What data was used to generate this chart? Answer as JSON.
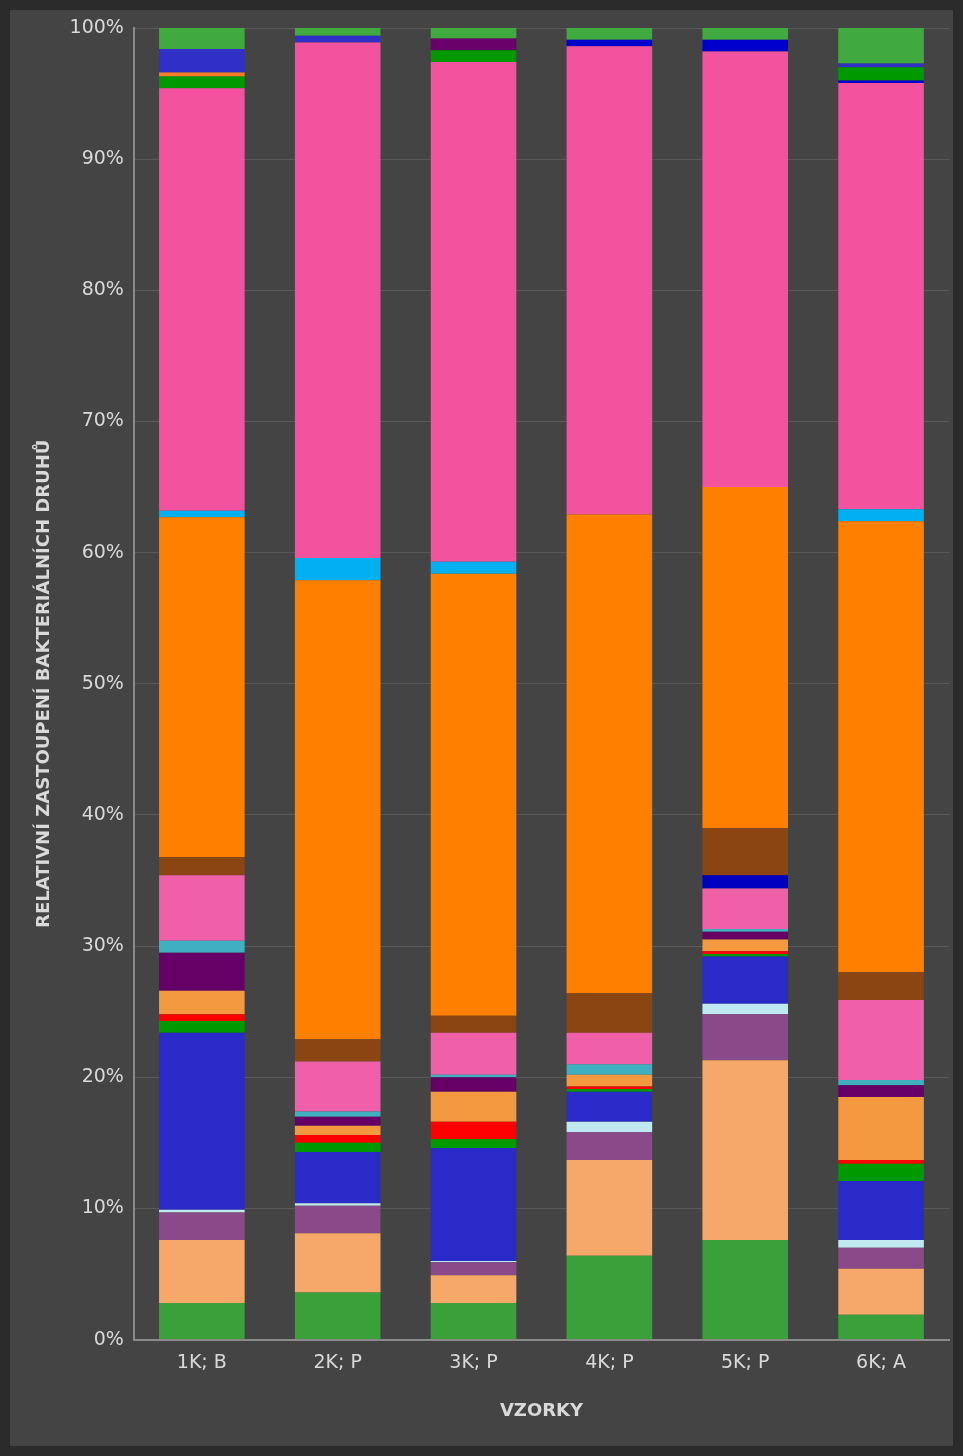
{
  "chart_data": {
    "type": "bar",
    "stacked": true,
    "xlabel": "VZORKY",
    "ylabel": "RELATIVNÍ ZASTOUPENÍ BAKTERIÁLNÍCH DRUHŮ",
    "categories": [
      "1K; B",
      "2K; P",
      "3K; P",
      "4K; P",
      "5K; P",
      "6K; A"
    ],
    "ylim": [
      0,
      100
    ],
    "yticks": [
      {
        "value": 0,
        "label": "0%"
      },
      {
        "value": 10,
        "label": "10%"
      },
      {
        "value": 20,
        "label": "20%"
      },
      {
        "value": 30,
        "label": "30%"
      },
      {
        "value": 40,
        "label": "40%"
      },
      {
        "value": 50,
        "label": "50%"
      },
      {
        "value": 60,
        "label": "60%"
      },
      {
        "value": 70,
        "label": "70%"
      },
      {
        "value": 80,
        "label": "80%"
      },
      {
        "value": 90,
        "label": "90%"
      },
      {
        "value": 100,
        "label": "100%"
      }
    ],
    "grid": "y",
    "legend": false,
    "series": [
      {
        "color": "#3aa03a",
        "values": [
          2.8,
          3.6,
          2.8,
          6.4,
          7.6,
          1.9
        ]
      },
      {
        "color": "#f5a86a",
        "values": [
          4.8,
          4.5,
          2.1,
          7.3,
          13.7,
          3.5
        ]
      },
      {
        "color": "#8a4a8a",
        "values": [
          2.1,
          2.1,
          1.0,
          2.1,
          3.5,
          1.6
        ]
      },
      {
        "color": "#bfe8f0",
        "values": [
          0.2,
          0.2,
          0.1,
          0.8,
          0.8,
          0.6
        ]
      },
      {
        "color": "#2a2ac8",
        "values": [
          13.5,
          3.9,
          8.6,
          2.3,
          3.6,
          4.5
        ]
      },
      {
        "color": "#009a00",
        "values": [
          0.9,
          0.7,
          0.7,
          0.2,
          0.2,
          1.3
        ]
      },
      {
        "color": "#ff0000",
        "values": [
          0.5,
          0.6,
          1.3,
          0.2,
          0.2,
          0.3
        ]
      },
      {
        "color": "#f39a40",
        "values": [
          1.8,
          0.7,
          2.3,
          0.9,
          0.9,
          4.8
        ]
      },
      {
        "color": "#660066",
        "values": [
          2.9,
          0.7,
          1.1,
          0,
          0.6,
          0.9
        ]
      },
      {
        "color": "#40b0c0",
        "values": [
          0.9,
          0.4,
          0.2,
          0.8,
          0.2,
          0.4
        ]
      },
      {
        "color": "#f060a8",
        "values": [
          5.0,
          3.8,
          3.2,
          2.4,
          3.1,
          6.1
        ]
      },
      {
        "color": "#0000c0",
        "values": [
          0,
          0,
          0,
          0,
          1.0,
          0
        ]
      },
      {
        "color": "#8b4513",
        "values": [
          1.4,
          1.7,
          1.3,
          3.0,
          3.6,
          2.1
        ]
      },
      {
        "color": "#ff8000",
        "values": [
          25.9,
          35.0,
          33.7,
          36.5,
          26.0,
          34.4
        ]
      },
      {
        "color": "#00b0f0",
        "values": [
          0.5,
          1.7,
          0.9,
          0,
          0,
          0.9
        ]
      },
      {
        "color": "#f2529e",
        "values": [
          32.2,
          39.3,
          38.1,
          35.7,
          33.2,
          32.5
        ]
      },
      {
        "color": "#0000cc",
        "values": [
          0,
          0,
          0,
          0.5,
          0.9,
          0.2
        ]
      },
      {
        "color": "#009900",
        "values": [
          0.9,
          0,
          0.9,
          0,
          0,
          1.0
        ]
      },
      {
        "color": "#ff7f27",
        "values": [
          0.3,
          0,
          0,
          0,
          0,
          0
        ]
      },
      {
        "color": "#3030c8",
        "values": [
          1.8,
          0.5,
          0,
          0,
          0,
          0.3
        ]
      },
      {
        "color": "#6a006a",
        "values": [
          0,
          0,
          0.9,
          0,
          0,
          0
        ]
      },
      {
        "color": "#40aa40",
        "values": [
          1.6,
          0.6,
          0.8,
          0.9,
          0.9,
          2.7
        ]
      }
    ]
  }
}
